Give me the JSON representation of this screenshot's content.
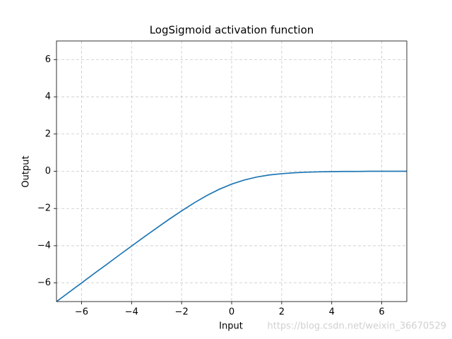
{
  "chart_data": {
    "type": "line",
    "title": "LogSigmoid activation function",
    "x_label": "Input",
    "y_label": "Output",
    "watermark": "https://blog.csdn.net/weixin_36670529",
    "x": [
      -7,
      -6.5,
      -6,
      -5.5,
      -5,
      -4.5,
      -4,
      -3.5,
      -3,
      -2.5,
      -2,
      -1.5,
      -1,
      -0.5,
      0,
      0.5,
      1,
      1.5,
      2,
      2.5,
      3,
      3.5,
      4,
      4.5,
      5,
      5.5,
      6,
      6.5,
      7
    ],
    "series": [
      {
        "color": "#1f77b4",
        "values": [
          -7.0,
          -6.5,
          -6.0,
          -5.5,
          -5.01,
          -4.51,
          -4.02,
          -3.53,
          -3.05,
          -2.58,
          -2.13,
          -1.7,
          -1.31,
          -0.97,
          -0.69,
          -0.47,
          -0.31,
          -0.2,
          -0.13,
          -0.08,
          -0.05,
          -0.03,
          -0.02,
          -0.01,
          -0.01,
          0,
          0,
          0,
          0
        ]
      }
    ],
    "xlim": [
      -7,
      7
    ],
    "ylim": [
      -7,
      7
    ],
    "xticks": [
      {
        "value": -6,
        "label": "−6"
      },
      {
        "value": -4,
        "label": "−4"
      },
      {
        "value": -2,
        "label": "−2"
      },
      0,
      2,
      4,
      6
    ],
    "yticks": [
      {
        "value": -6,
        "label": "−6"
      },
      {
        "value": -4,
        "label": "−4"
      },
      {
        "value": -2,
        "label": "−2"
      },
      0,
      2,
      4,
      6
    ],
    "grid": true
  }
}
